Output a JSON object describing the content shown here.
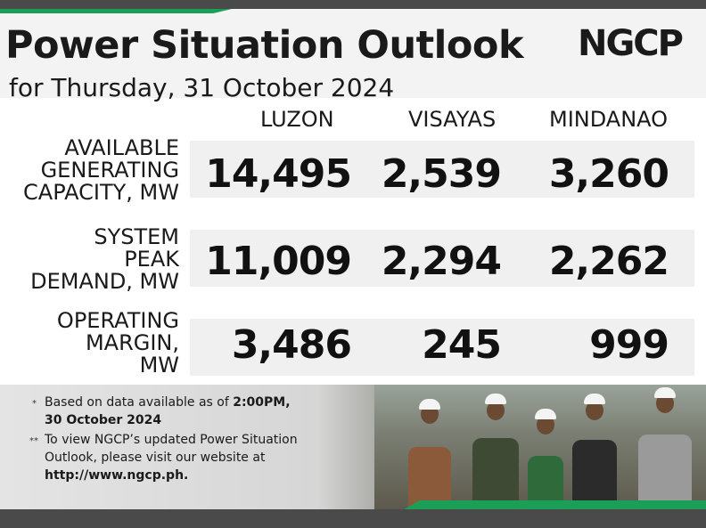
{
  "header": {
    "title": "Power Situation Outlook",
    "subtitle": "for Thursday, 31 October 2024",
    "logo_text": "NGCP"
  },
  "columns": [
    "LUZON",
    "VISAYAS",
    "MINDANAO"
  ],
  "rows": [
    {
      "label": "AVAILABLE\nGENERATING\nCAPACITY, MW",
      "values": [
        "14,495",
        "2,539",
        "3,260"
      ]
    },
    {
      "label": "SYSTEM\nPEAK\nDEMAND, MW",
      "values": [
        "11,009",
        "2,294",
        "2,262"
      ]
    },
    {
      "label": "OPERATING\nMARGIN,\nMW",
      "values": [
        "3,486",
        "245",
        "999"
      ]
    }
  ],
  "notes": {
    "note1_marker": "*",
    "note1_line1_prefix": "Based on data available as of ",
    "note1_line1_bold": "2:00PM,",
    "note1_line2_bold": "30 October 2024",
    "note2_marker": "**",
    "note2_line1": "To view NGCP’s updated Power Situation",
    "note2_line2": "Outlook, please visit our website at",
    "note2_line3_bold": "http://www.ngcp.ph."
  },
  "colors": {
    "brand_green": "#1b9e55",
    "dark_bar": "#4a4a4a",
    "row_bg": "#f0f0f0"
  }
}
